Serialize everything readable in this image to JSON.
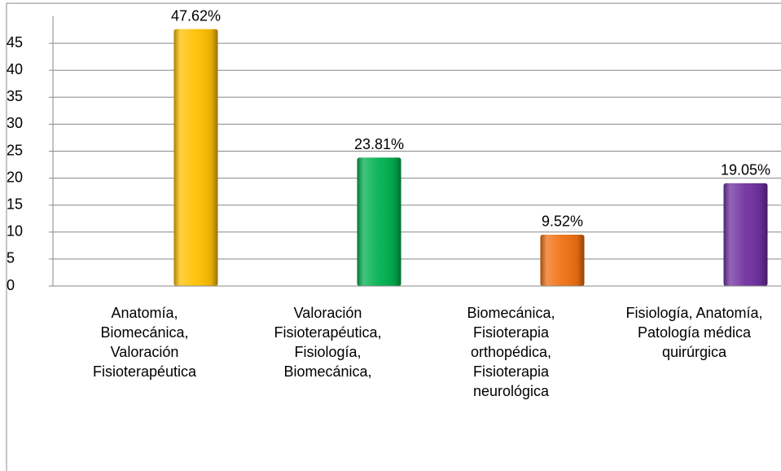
{
  "chart_data": {
    "type": "bar",
    "categories": [
      "Anatomía,\nBiomecánica,\nValoración\nFisioterapéutica",
      "Valoración\nFisioterapéutica,\nFisiología,\nBiomecánica,",
      "Biomecánica,\nFisioterapia\northopédica,\nFisioterapia\nneurológica",
      "Fisiología, Anatomía,\nPatología médica\nquirúrgica"
    ],
    "values": [
      47.62,
      23.81,
      9.52,
      19.05
    ],
    "value_labels": [
      "47.62%",
      "23.81%",
      "9.52%",
      "19.05%"
    ],
    "colors": [
      "#FFC000",
      "#00B050",
      "#F07010",
      "#7030A0"
    ],
    "ylim": [
      0,
      50
    ],
    "yticks": [
      0,
      5,
      10,
      15,
      20,
      25,
      30,
      35,
      40,
      45
    ],
    "grid": true
  }
}
